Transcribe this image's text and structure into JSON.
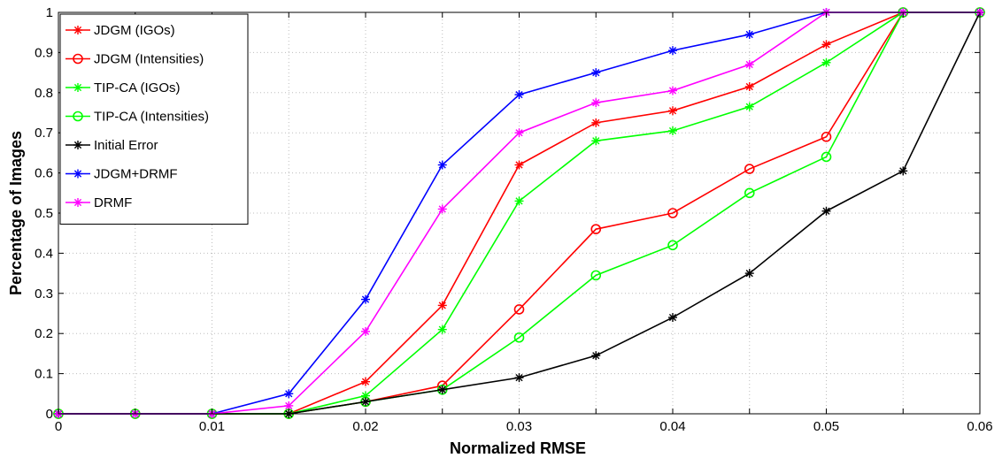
{
  "chart_data": {
    "type": "line",
    "title": "",
    "xlabel": "Normalized RMSE",
    "ylabel": "Percentage of Images",
    "xlim": [
      0,
      0.06
    ],
    "ylim": [
      0,
      1
    ],
    "x_ticks": [
      0,
      0.005,
      0.01,
      0.015,
      0.02,
      0.025,
      0.03,
      0.035,
      0.04,
      0.045,
      0.05,
      0.055,
      0.06
    ],
    "x_tick_labels": [
      "0",
      "",
      "0.01",
      "",
      "0.02",
      "",
      "0.03",
      "",
      "0.04",
      "",
      "0.05",
      "",
      "0.06"
    ],
    "y_ticks": [
      0,
      0.1,
      0.2,
      0.3,
      0.4,
      0.5,
      0.6,
      0.7,
      0.8,
      0.9,
      1
    ],
    "y_tick_labels": [
      "0",
      "0.1",
      "0.2",
      "0.3",
      "0.4",
      "0.5",
      "0.6",
      "0.7",
      "0.8",
      "0.9",
      "1"
    ],
    "grid": true,
    "legend_position": "top-left",
    "x": [
      0,
      0.005,
      0.01,
      0.015,
      0.02,
      0.025,
      0.03,
      0.035,
      0.04,
      0.045,
      0.05,
      0.055,
      0.06
    ],
    "series": [
      {
        "name": "JDGM (IGOs)",
        "color": "#ff0000",
        "marker": "star",
        "values": [
          0,
          0,
          0,
          0,
          0.08,
          0.27,
          0.62,
          0.725,
          0.755,
          0.815,
          0.92,
          1,
          1
        ]
      },
      {
        "name": "JDGM (Intensities)",
        "color": "#ff0000",
        "marker": "circle",
        "values": [
          0,
          0,
          0,
          0,
          0.03,
          0.07,
          0.26,
          0.46,
          0.5,
          0.61,
          0.69,
          1,
          1
        ]
      },
      {
        "name": "TIP-CA (IGOs)",
        "color": "#00ff00",
        "marker": "star",
        "values": [
          0,
          0,
          0,
          0,
          0.045,
          0.21,
          0.53,
          0.68,
          0.705,
          0.765,
          0.875,
          1,
          1
        ]
      },
      {
        "name": "TIP-CA (Intensities)",
        "color": "#00ff00",
        "marker": "circle",
        "values": [
          0,
          0,
          0,
          0,
          0.03,
          0.06,
          0.19,
          0.345,
          0.42,
          0.55,
          0.64,
          1,
          1
        ]
      },
      {
        "name": "Initial Error",
        "color": "#000000",
        "marker": "star",
        "values": [
          0,
          0,
          0,
          0,
          0.03,
          0.06,
          0.09,
          0.145,
          0.24,
          0.35,
          0.505,
          0.605,
          1
        ]
      },
      {
        "name": "JDGM+DRMF",
        "color": "#0000ff",
        "marker": "star",
        "values": [
          0,
          0,
          0,
          0.05,
          0.285,
          0.62,
          0.795,
          0.85,
          0.905,
          0.945,
          1,
          1,
          1
        ]
      },
      {
        "name": "DRMF",
        "color": "#ff00ff",
        "marker": "star",
        "values": [
          0,
          0,
          0,
          0.02,
          0.205,
          0.51,
          0.7,
          0.775,
          0.805,
          0.87,
          1,
          1,
          1
        ]
      }
    ]
  }
}
